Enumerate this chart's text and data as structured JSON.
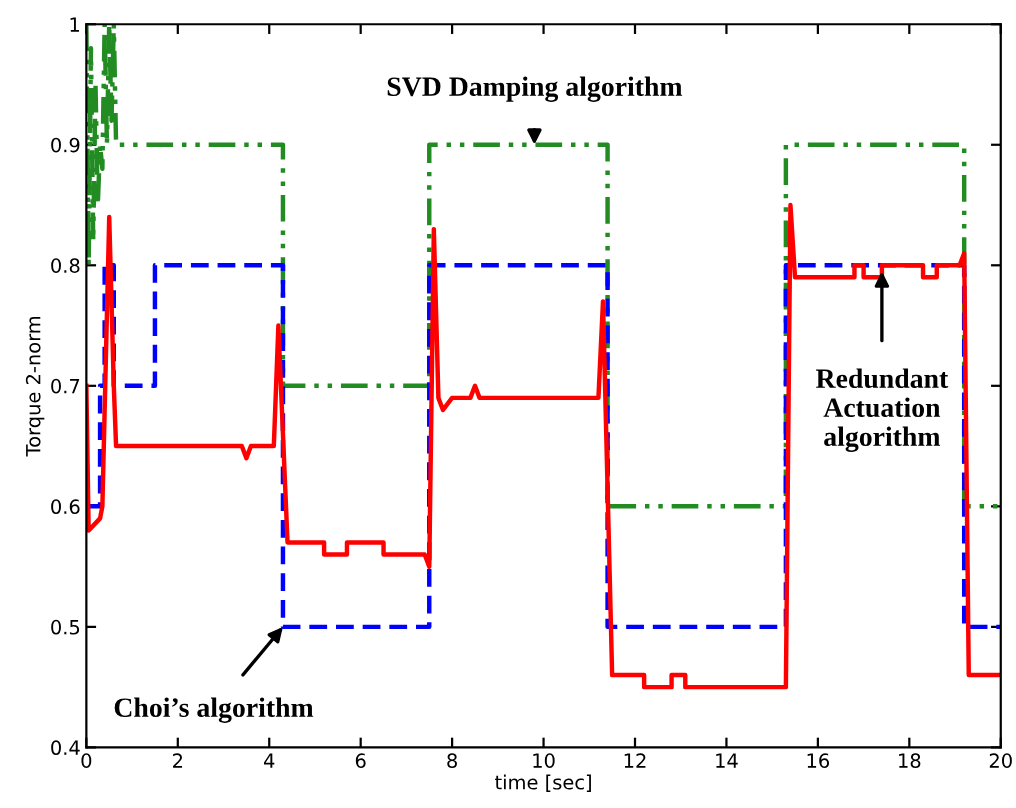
{
  "chart_data": {
    "type": "line",
    "xlabel": "time [sec]",
    "ylabel": "Torque 2-norm",
    "xlim": [
      0,
      20
    ],
    "ylim": [
      0.4,
      1
    ],
    "xticks": [
      0,
      2,
      4,
      6,
      8,
      10,
      12,
      14,
      16,
      18,
      20
    ],
    "yticks": [
      0.4,
      0.5,
      0.6,
      0.7,
      0.8,
      0.9,
      1
    ],
    "grid": false,
    "marker": "none",
    "series": [
      {
        "color": "#228b22",
        "line_style": "dashdot",
        "x": [
          0,
          0.05,
          0.1,
          0.15,
          0.2,
          0.25,
          0.3,
          0.35,
          0.4,
          0.45,
          0.5,
          0.55,
          0.6,
          0.65,
          4.3,
          4.3,
          7.5,
          7.5,
          11.4,
          11.4,
          15.3,
          15.3,
          19.2,
          19.2,
          20
        ],
        "values": [
          1,
          0.8,
          0.98,
          0.82,
          0.95,
          0.85,
          0.9,
          0.88,
          1,
          0.9,
          1,
          0.92,
          1,
          0.9,
          0.9,
          0.7,
          0.7,
          0.9,
          0.9,
          0.6,
          0.6,
          0.9,
          0.9,
          0.6,
          0.6
        ]
      },
      {
        "color": "#0000ff",
        "line_style": "dashed",
        "x": [
          0,
          0.3,
          0.3,
          0.4,
          0.4,
          0.6,
          0.6,
          1.5,
          1.5,
          4.3,
          4.3,
          7.5,
          7.5,
          11.4,
          11.4,
          15.3,
          15.3,
          19.2,
          19.2,
          20
        ],
        "values": [
          0.6,
          0.6,
          0.7,
          0.7,
          0.8,
          0.8,
          0.7,
          0.7,
          0.8,
          0.8,
          0.5,
          0.5,
          0.8,
          0.8,
          0.5,
          0.5,
          0.8,
          0.8,
          0.5,
          0.5
        ]
      },
      {
        "color": "#ff0000",
        "line_style": "solid",
        "x": [
          0,
          0.05,
          0.3,
          0.35,
          0.5,
          0.6,
          0.65,
          3.4,
          3.5,
          3.6,
          4.1,
          4.2,
          4.4,
          5.2,
          5.2,
          5.7,
          5.7,
          6.5,
          6.5,
          7.4,
          7.5,
          7.6,
          7.7,
          7.8,
          8.0,
          8.4,
          8.5,
          8.6,
          11.2,
          11.3,
          11.5,
          12.2,
          12.2,
          12.8,
          12.8,
          13.1,
          13.1,
          15.3,
          15.4,
          15.5,
          16.8,
          16.8,
          17.0,
          17.0,
          17.4,
          17.4,
          18.3,
          18.3,
          18.6,
          18.6,
          19.1,
          19.2,
          19.3,
          20
        ],
        "values": [
          0.7,
          0.58,
          0.59,
          0.6,
          0.84,
          0.7,
          0.65,
          0.65,
          0.64,
          0.65,
          0.65,
          0.75,
          0.57,
          0.57,
          0.56,
          0.56,
          0.57,
          0.57,
          0.56,
          0.56,
          0.55,
          0.83,
          0.69,
          0.68,
          0.69,
          0.69,
          0.7,
          0.69,
          0.69,
          0.77,
          0.46,
          0.46,
          0.45,
          0.45,
          0.46,
          0.46,
          0.45,
          0.45,
          0.85,
          0.79,
          0.79,
          0.8,
          0.8,
          0.79,
          0.79,
          0.8,
          0.8,
          0.79,
          0.79,
          0.8,
          0.8,
          0.81,
          0.46,
          0.46
        ]
      }
    ],
    "annotations": [
      {
        "text": "SVD Damping algorithm",
        "x": 9.8,
        "y": 0.9
      },
      {
        "text": "Choi’s algorithm",
        "x": 4.3,
        "y": 0.5
      },
      {
        "text": "Redundant\nActuation\nalgorithm",
        "x": 17.4,
        "y": 0.795
      }
    ]
  }
}
